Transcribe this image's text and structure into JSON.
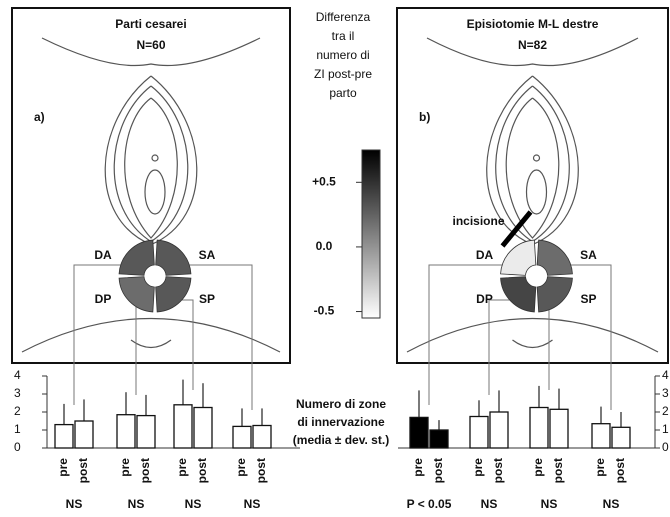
{
  "legend": {
    "title_lines": [
      "Differenza",
      "tra il",
      "numero di",
      "ZI post-pre",
      "parto"
    ],
    "lim": [
      -0.55,
      0.75
    ],
    "ticks": [
      {
        "value": 0.5,
        "label": "+0.5"
      },
      {
        "value": 0,
        "label": "0.0"
      },
      {
        "value": -0.5,
        "label": "-0.5"
      }
    ]
  },
  "bar_axis": {
    "ylim": [
      0,
      4
    ],
    "yticks": [
      0,
      1,
      2,
      3,
      4
    ]
  },
  "bar_axis_label_lines": [
    "Numero di zone",
    "di innervazione",
    "(media ± dev. st.)"
  ],
  "panels": [
    {
      "label": "a)",
      "title": "Parti cesarei",
      "n": "N=60",
      "quadrants": [
        {
          "name": "DA",
          "value": 0.3
        },
        {
          "name": "SA",
          "value": 0.3
        },
        {
          "name": "DP",
          "value": 0.2
        },
        {
          "name": "SP",
          "value": 0.3
        }
      ],
      "groups": [
        {
          "bar_labels": [
            "pre",
            "post"
          ],
          "means": [
            1.3,
            1.5
          ],
          "sds": [
            1.15,
            1.2
          ],
          "fill": "#ffffff",
          "significance": "NS"
        },
        {
          "bar_labels": [
            "pre",
            "post"
          ],
          "means": [
            1.85,
            1.8
          ],
          "sds": [
            1.25,
            1.15
          ],
          "fill": "#ffffff",
          "significance": "NS"
        },
        {
          "bar_labels": [
            "pre",
            "post"
          ],
          "means": [
            2.4,
            2.25
          ],
          "sds": [
            1.4,
            1.35
          ],
          "fill": "#ffffff",
          "significance": "NS"
        },
        {
          "bar_labels": [
            "pre",
            "post"
          ],
          "means": [
            1.2,
            1.25
          ],
          "sds": [
            1.0,
            0.95
          ],
          "fill": "#ffffff",
          "significance": "NS"
        }
      ]
    },
    {
      "label": "b)",
      "title": "Episiotomie M-L destre",
      "n": "N=82",
      "annotation": "incisione",
      "quadrants": [
        {
          "name": "DA",
          "value": -0.45
        },
        {
          "name": "SA",
          "value": 0.2
        },
        {
          "name": "DP",
          "value": 0.4
        },
        {
          "name": "SP",
          "value": 0.3
        }
      ],
      "groups": [
        {
          "bar_labels": [
            "pre",
            "post"
          ],
          "means": [
            1.7,
            1.0
          ],
          "sds": [
            1.5,
            0.55
          ],
          "fill": "#000000",
          "significance": "P < 0.05"
        },
        {
          "bar_labels": [
            "pre",
            "post"
          ],
          "means": [
            1.75,
            2.0
          ],
          "sds": [
            0.9,
            1.2
          ],
          "fill": "#ffffff",
          "significance": "NS"
        },
        {
          "bar_labels": [
            "pre",
            "post"
          ],
          "means": [
            2.25,
            2.15
          ],
          "sds": [
            1.2,
            1.15
          ],
          "fill": "#ffffff",
          "significance": "NS"
        },
        {
          "bar_labels": [
            "pre",
            "post"
          ],
          "means": [
            1.35,
            1.15
          ],
          "sds": [
            0.95,
            0.85
          ],
          "fill": "#ffffff",
          "significance": "NS"
        }
      ]
    }
  ]
}
